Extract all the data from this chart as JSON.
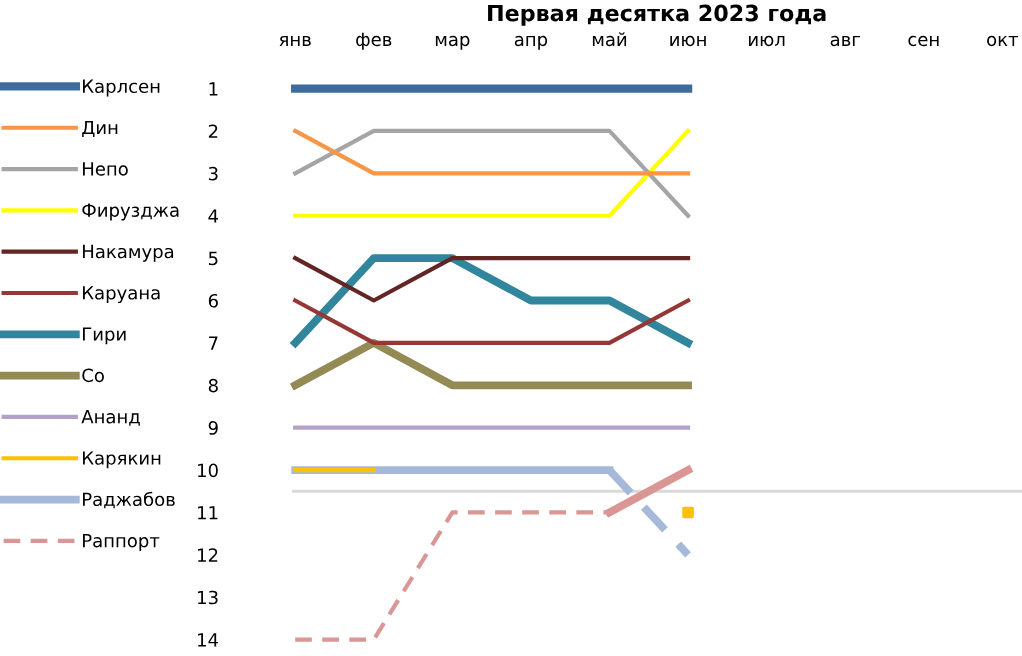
{
  "chart_data": {
    "type": "line",
    "title": "Первая десятка 2023 года",
    "categories": [
      "янв",
      "фев",
      "мар",
      "апр",
      "май",
      "июн",
      "июл",
      "авг",
      "сен",
      "окт"
    ],
    "ylim": [
      14,
      1
    ],
    "yticks": [
      1,
      2,
      3,
      4,
      5,
      6,
      7,
      8,
      9,
      10,
      11,
      12,
      13,
      14
    ],
    "grid": false,
    "legend": "left",
    "marker": "none",
    "ref_lines": [
      {
        "axis": "y",
        "value": 10.5,
        "color": "#d9d9d9"
      }
    ],
    "series": [
      {
        "name": "Карлсен",
        "color": "#3f6a9c",
        "values": [
          1,
          1,
          1,
          1,
          1,
          1,
          null,
          null,
          null,
          null
        ]
      },
      {
        "name": "Дин",
        "color": "#f79646",
        "values": [
          2,
          3,
          3,
          3,
          3,
          3,
          null,
          null,
          null,
          null
        ]
      },
      {
        "name": "Непо",
        "color": "#a5a5a5",
        "values": [
          3,
          2,
          2,
          2,
          2,
          4,
          null,
          null,
          null,
          null
        ]
      },
      {
        "name": "Фирузджа",
        "color": "#ffff00",
        "values": [
          4,
          4,
          4,
          4,
          4,
          2,
          null,
          null,
          null,
          null
        ]
      },
      {
        "name": "Накамура",
        "color": "#632523",
        "values": [
          5,
          6,
          5,
          5,
          5,
          5,
          null,
          null,
          null,
          null
        ]
      },
      {
        "name": "Каруана",
        "color": "#953735",
        "values": [
          6,
          7,
          7,
          7,
          7,
          6,
          null,
          null,
          null,
          null
        ]
      },
      {
        "name": "Гири",
        "color": "#31859c",
        "values": [
          7,
          5,
          5,
          6,
          6,
          7,
          null,
          null,
          null,
          null
        ]
      },
      {
        "name": "Со",
        "color": "#948a54",
        "values": [
          8,
          7,
          8,
          8,
          8,
          8,
          null,
          null,
          null,
          null
        ]
      },
      {
        "name": "Ананд",
        "color": "#b3a2c7",
        "values": [
          9,
          9,
          9,
          9,
          9,
          9,
          null,
          null,
          null,
          null
        ]
      },
      {
        "name": "Карякин",
        "color": "#ffc000",
        "values": [
          10,
          10,
          null,
          null,
          null,
          null,
          null,
          null,
          null,
          null
        ]
      },
      {
        "type": "scatter",
        "marker": "square",
        "color": "#ffc000",
        "values": [
          null,
          null,
          null,
          null,
          null,
          11,
          null,
          null,
          null,
          null
        ]
      },
      {
        "name": "Раджабов",
        "color": "#a6b9d9",
        "values": [
          10,
          10,
          10,
          10,
          10,
          null,
          null,
          null,
          null,
          null
        ]
      },
      {
        "color": "#a6b9d9",
        "line_style": "dashed",
        "values": [
          null,
          null,
          null,
          null,
          10,
          12,
          null,
          null,
          null,
          null
        ]
      },
      {
        "name": "Раппорт",
        "color": "#d99694",
        "line_style": "dashed",
        "values": [
          14,
          14,
          11,
          11,
          11,
          null,
          null,
          null,
          null,
          null
        ]
      },
      {
        "color": "#d99694",
        "values": [
          null,
          null,
          null,
          null,
          11,
          10,
          null,
          null,
          null,
          null
        ]
      }
    ]
  }
}
